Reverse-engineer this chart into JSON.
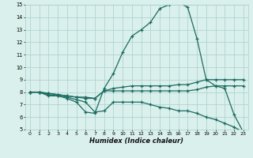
{
  "xlabel": "Humidex (Indice chaleur)",
  "xlim": [
    -0.5,
    23.5
  ],
  "ylim": [
    5,
    15
  ],
  "yticks": [
    5,
    6,
    7,
    8,
    9,
    10,
    11,
    12,
    13,
    14,
    15
  ],
  "xticks": [
    0,
    1,
    2,
    3,
    4,
    5,
    6,
    7,
    8,
    9,
    10,
    11,
    12,
    13,
    14,
    15,
    16,
    17,
    18,
    19,
    20,
    21,
    22,
    23
  ],
  "bg_color": "#daf0ec",
  "grid_color": "#aaceca",
  "line_color": "#1a6b60",
  "line_width": 0.9,
  "marker": "+",
  "marker_size": 3.5,
  "marker_edge_width": 0.9,
  "series": {
    "line1": [
      8.0,
      8.0,
      7.7,
      7.7,
      7.5,
      7.2,
      6.4,
      6.3,
      8.3,
      9.5,
      11.2,
      12.5,
      13.0,
      13.6,
      14.7,
      15.0,
      15.2,
      14.8,
      12.3,
      9.0,
      8.5,
      8.3,
      6.2,
      4.8
    ],
    "line2": [
      8.0,
      8.0,
      7.9,
      7.8,
      7.7,
      7.6,
      7.5,
      7.5,
      8.1,
      8.3,
      8.4,
      8.5,
      8.5,
      8.5,
      8.5,
      8.5,
      8.6,
      8.6,
      8.8,
      9.0,
      9.0,
      9.0,
      9.0,
      9.0
    ],
    "line3": [
      8.0,
      8.0,
      7.9,
      7.8,
      7.7,
      7.6,
      7.6,
      7.5,
      8.1,
      8.1,
      8.1,
      8.1,
      8.1,
      8.1,
      8.1,
      8.1,
      8.1,
      8.1,
      8.2,
      8.4,
      8.5,
      8.5,
      8.5,
      8.5
    ],
    "line4": [
      8.0,
      8.0,
      7.8,
      7.7,
      7.6,
      7.4,
      7.2,
      6.4,
      6.5,
      7.2,
      7.2,
      7.2,
      7.2,
      7.0,
      6.8,
      6.7,
      6.5,
      6.5,
      6.3,
      6.0,
      5.8,
      5.5,
      5.2,
      4.8
    ]
  }
}
